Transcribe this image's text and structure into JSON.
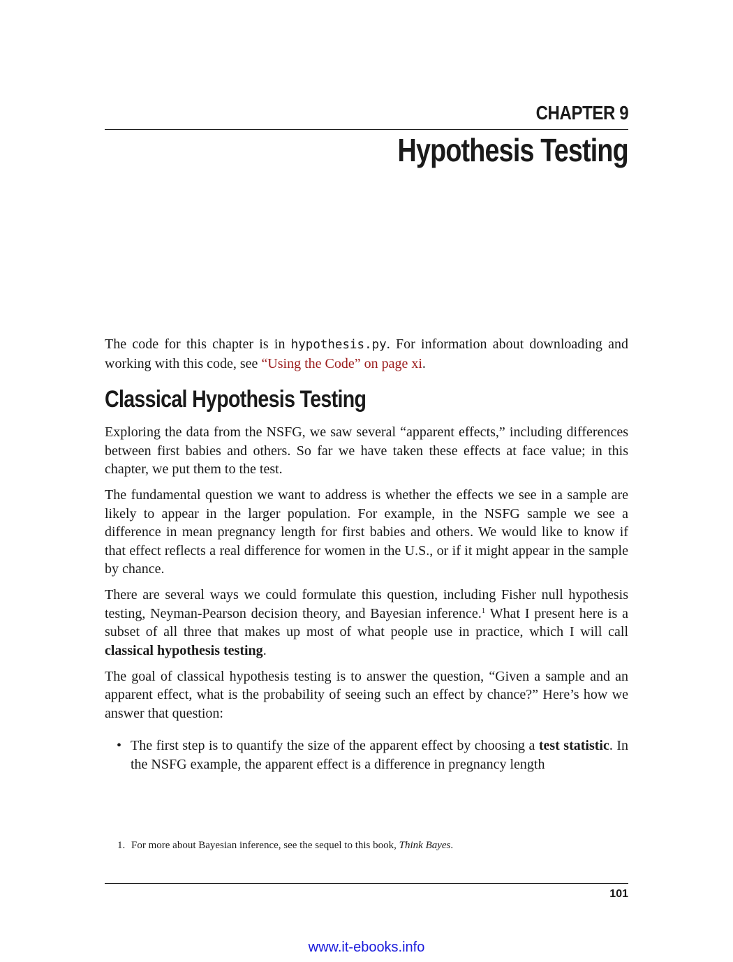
{
  "chapter": {
    "label": "CHAPTER 9",
    "title": "Hypothesis Testing"
  },
  "intro": {
    "before_code": "The code for this chapter is in ",
    "code": "hypothesis.py",
    "after_code": ". For information about downloading and working with this code, see ",
    "link": "“Using the Code” on page xi",
    "end": "."
  },
  "section": {
    "title": "Classical Hypothesis Testing"
  },
  "paragraphs": {
    "p1": "Exploring the data from the NSFG, we saw several “apparent effects,” including differences between first babies and others. So far we have taken these effects at face value; in this chapter, we put them to the test.",
    "p2": "The fundamental question we want to address is whether the effects we see in a sample are likely to appear in the larger population. For example, in the NSFG sample we see a difference in mean pregnancy length for first babies and others. We would like to know if that effect reflects a real difference for women in the U.S., or if it might appear in the sample by chance.",
    "p3_before_sup": "There are several ways we could formulate this question, including Fisher null hypothesis testing, Neyman-Pearson decision theory, and Bayesian inference.",
    "p3_sup": "1",
    "p3_after_sup": " What I present here is a subset of all three that makes up most of what people use in practice, which I will call ",
    "p3_bold": "classical hypothesis testing",
    "p3_end": ".",
    "p4": "The goal of classical hypothesis testing is to answer the question, “Given a sample and an apparent effect, what is the probability of seeing such an effect by chance?” Here’s how we answer that question:"
  },
  "bullets": [
    {
      "before_bold": "The first step is to quantify the size of the apparent effect by choosing a ",
      "bold": "test statistic",
      "after_bold": ". In the NSFG example, the apparent effect is a difference in pregnancy length"
    }
  ],
  "footnote": {
    "number": "1.",
    "text": "For more about Bayesian inference, see the sequel to this book, ",
    "italic": "Think Bayes",
    "end": "."
  },
  "page_number": "101",
  "watermark": "www.it-ebooks.info"
}
